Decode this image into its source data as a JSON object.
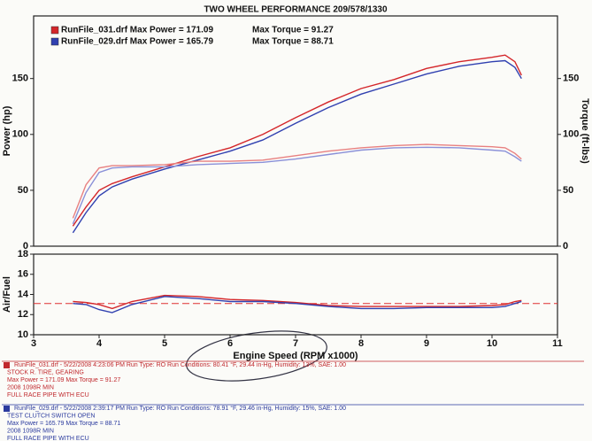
{
  "chart_data": [
    {
      "type": "line",
      "title": "TWO WHEEL PERFORMANCE  209/578/1330",
      "y_label": "Power (hp)",
      "y2_label": "Torque (ft-lbs)",
      "xlim": [
        3,
        11
      ],
      "ylim": [
        0,
        206
      ],
      "yticks": [
        0,
        50,
        100,
        150
      ],
      "y2lim": [
        0,
        206
      ],
      "y2ticks": [
        0,
        50,
        100,
        150
      ],
      "x": [
        3.6,
        3.8,
        4.0,
        4.2,
        4.5,
        5,
        5.5,
        6,
        6.5,
        7,
        7.5,
        8,
        8.5,
        9,
        9.5,
        10,
        10.2,
        10.35,
        10.45
      ],
      "series": [
        {
          "name": "RunFile_031.drf Max Power = 171.09",
          "color": "#d4262a",
          "values": [
            18,
            35,
            50,
            56,
            62,
            71,
            80,
            88,
            100,
            115,
            129,
            141,
            149,
            159,
            165,
            169,
            171,
            165,
            153
          ]
        },
        {
          "name": "RunFile_029.drf Max Power = 165.79",
          "color": "#3040b0",
          "values": [
            12,
            30,
            45,
            53,
            60,
            69,
            77,
            85,
            95,
            110,
            124,
            136,
            145,
            154,
            161,
            165,
            166,
            160,
            150
          ]
        },
        {
          "name": "Max Torque = 91.27",
          "color": "#e88080",
          "axis": "y2",
          "values": [
            25,
            55,
            70,
            72,
            72,
            73,
            76,
            76,
            77,
            81,
            85,
            88,
            90,
            91,
            90,
            89,
            88,
            83,
            78
          ]
        },
        {
          "name": "Max Torque = 88.71",
          "color": "#8a90d8",
          "axis": "y2",
          "values": [
            20,
            48,
            66,
            70,
            71,
            71,
            73,
            74,
            75,
            78,
            82,
            86,
            88,
            88.5,
            88,
            86,
            85,
            80,
            76
          ]
        }
      ]
    },
    {
      "type": "line",
      "y_label": "Air/Fuel",
      "x_label": "Engine Speed (RPM x1000)",
      "xlim": [
        3,
        11
      ],
      "xticks": [
        3,
        4,
        5,
        6,
        7,
        8,
        9,
        10,
        11
      ],
      "ylim": [
        10,
        18
      ],
      "yticks": [
        10,
        12,
        14,
        16,
        18
      ],
      "reference_line": {
        "value": 13.1,
        "color": "#e03030"
      },
      "x": [
        3.6,
        3.8,
        4.0,
        4.2,
        4.5,
        5,
        5.5,
        6,
        6.5,
        7,
        7.5,
        8,
        8.5,
        9,
        9.5,
        10,
        10.2,
        10.35,
        10.45
      ],
      "series": [
        {
          "color": "#d4262a",
          "values": [
            13.3,
            13.2,
            13.0,
            12.6,
            13.3,
            13.9,
            13.8,
            13.5,
            13.4,
            13.2,
            12.9,
            12.8,
            12.8,
            12.8,
            12.8,
            12.9,
            13.0,
            13.3,
            13.4
          ]
        },
        {
          "color": "#3040b0",
          "values": [
            13.1,
            13.0,
            12.5,
            12.2,
            13.0,
            13.8,
            13.6,
            13.3,
            13.3,
            13.1,
            12.8,
            12.6,
            12.6,
            12.7,
            12.7,
            12.7,
            12.8,
            13.1,
            13.3
          ]
        }
      ]
    }
  ],
  "footer": {
    "runs": [
      {
        "color": "#c0282d",
        "lines": [
          "RunFile_031.drf - 5/22/2008 4:23:06 PM  Run Type: RO  Run Conditions: 80.41 °F, 29.44 in-Hg,  Humidity: 13%, SAE: 1.00",
          "STOCK R. TIRE, GEARING",
          "Max Power = 171.09  Max Torque = 91.27",
          "2008 1098R  MIN",
          "FULL RACE PIPE WITH ECU"
        ]
      },
      {
        "color": "#2a3a9e",
        "lines": [
          "RunFile_029.drf - 5/22/2008 2:39:17 PM  Run Type: RO  Run Conditions: 78.91 °F, 29.46 in-Hg,  Humidity: 15%, SAE: 1.00",
          "TEST  CLUTCH SWITCH  OPEN",
          "Max Power = 165.79  Max Torque = 88.71",
          "2008 1098R  MIN",
          "FULL RACE PIPE WITH ECU"
        ]
      }
    ]
  }
}
